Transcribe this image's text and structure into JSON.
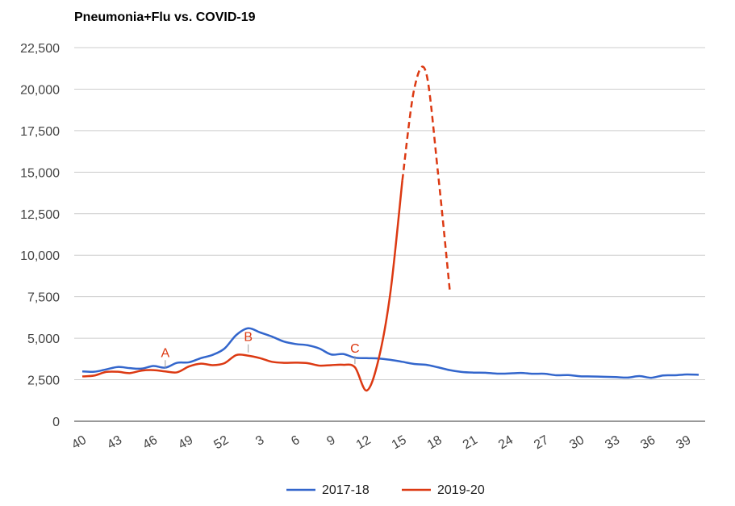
{
  "chart_data": {
    "type": "line",
    "title": "Pneumonia+Flu vs. COVID-19",
    "xlabel": "",
    "ylabel": "",
    "ylim": [
      0,
      22500
    ],
    "y_ticks": [
      "0",
      "2,500",
      "5,000",
      "7,500",
      "10,000",
      "12,500",
      "15,000",
      "17,500",
      "20,000",
      "22,500"
    ],
    "x_ticks": [
      "40",
      "43",
      "46",
      "49",
      "52",
      "3",
      "6",
      "9",
      "12",
      "15",
      "18",
      "21",
      "24",
      "27",
      "30",
      "33",
      "36",
      "39"
    ],
    "grid": true,
    "legend_position": "bottom",
    "series": [
      {
        "name": "2017-18",
        "color": "#3366cc",
        "dashed_from_index": null,
        "values": [
          3000,
          2980,
          3120,
          3270,
          3200,
          3170,
          3330,
          3230,
          3520,
          3550,
          3800,
          4000,
          4380,
          5200,
          5600,
          5350,
          5100,
          4800,
          4650,
          4580,
          4380,
          4020,
          4050,
          3830,
          3800,
          3780,
          3700,
          3580,
          3450,
          3400,
          3250,
          3080,
          2970,
          2930,
          2920,
          2870,
          2880,
          2910,
          2860,
          2860,
          2770,
          2780,
          2710,
          2700,
          2680,
          2660,
          2630,
          2720,
          2620,
          2760,
          2770,
          2820,
          2800
        ]
      },
      {
        "name": "2019-20",
        "color": "#dc3912",
        "dashed_from_index": 27,
        "values": [
          2700,
          2750,
          2970,
          2980,
          2900,
          3050,
          3080,
          3000,
          2950,
          3300,
          3470,
          3380,
          3500,
          3990,
          3950,
          3800,
          3580,
          3520,
          3530,
          3500,
          3350,
          3380,
          3400,
          3250,
          1850,
          3750,
          7800,
          14500,
          20000,
          21000,
          15000,
          7900
        ]
      }
    ],
    "annotations": [
      {
        "label": "A",
        "series_index": 1,
        "point_index": 7,
        "color": "#dc3912"
      },
      {
        "label": "B",
        "series_index": 1,
        "point_index": 14,
        "color": "#dc3912"
      },
      {
        "label": "C",
        "series_index": 1,
        "point_index": 23,
        "color": "#dc3912"
      }
    ]
  }
}
